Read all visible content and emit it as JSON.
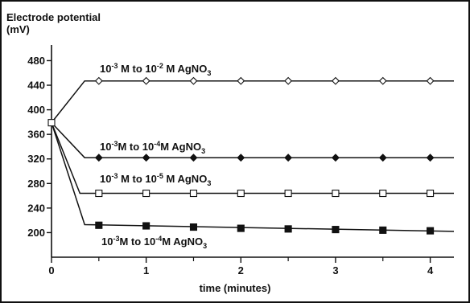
{
  "chart_data": {
    "type": "line",
    "ylabel": "Electrode potential",
    "ylabel_unit": "(mV)",
    "xlabel": "time (minutes)",
    "xlim": [
      0,
      4.25
    ],
    "ylim": [
      160,
      495
    ],
    "x_ticks": [
      0,
      1,
      2,
      3,
      4
    ],
    "x_minor_ticks": [
      0.5,
      1.5,
      2.5,
      3.5
    ],
    "y_ticks": [
      200,
      240,
      280,
      320,
      360,
      400,
      440,
      480
    ],
    "y_tick_labels": [
      "200",
      "240",
      "280",
      "320",
      "360",
      "400",
      "440",
      "480"
    ],
    "x_tick_labels": [
      "0",
      "1",
      "2",
      "3",
      "4"
    ],
    "start_point": {
      "x": 0,
      "y": 379
    },
    "series": [
      {
        "label": {
          "pre": "10",
          "exp1": "-3",
          "mid": " M to 10",
          "exp2": "-2",
          "post": " M AgNO",
          "sub": "3"
        },
        "marker": "diamond-open",
        "line": [
          [
            0,
            379
          ],
          [
            0.35,
            447
          ],
          [
            4.25,
            447
          ]
        ],
        "points": [
          [
            0.5,
            447
          ],
          [
            1,
            447
          ],
          [
            1.5,
            447
          ],
          [
            2,
            447
          ],
          [
            2.5,
            447
          ],
          [
            3,
            447
          ],
          [
            3.5,
            447
          ],
          [
            4,
            447
          ]
        ]
      },
      {
        "label": {
          "pre": "10",
          "exp1": "-3",
          "mid": "M to 10",
          "exp2": "-4",
          "post": "M AgNO",
          "sub": "3"
        },
        "marker": "diamond-filled",
        "line": [
          [
            0,
            379
          ],
          [
            0.35,
            322
          ],
          [
            4.25,
            322
          ]
        ],
        "points": [
          [
            0.5,
            322
          ],
          [
            1,
            322
          ],
          [
            1.5,
            322
          ],
          [
            2,
            322
          ],
          [
            2.5,
            322
          ],
          [
            3,
            322
          ],
          [
            3.5,
            322
          ],
          [
            4,
            322
          ]
        ]
      },
      {
        "label": {
          "pre": "10",
          "exp1": "-3",
          "mid": " M to 10",
          "exp2": "-5",
          "post": " M AgNO",
          "sub": "3"
        },
        "marker": "square-open",
        "line": [
          [
            0,
            379
          ],
          [
            0.3,
            264
          ],
          [
            4.25,
            264
          ]
        ],
        "points": [
          [
            0.5,
            264
          ],
          [
            1,
            264
          ],
          [
            1.5,
            264
          ],
          [
            2,
            264
          ],
          [
            2.5,
            264
          ],
          [
            3,
            264
          ],
          [
            3.5,
            264
          ],
          [
            4,
            264
          ]
        ]
      },
      {
        "label": {
          "pre": "10",
          "exp1": "-3",
          "mid": "M to 10",
          "exp2": "-4",
          "post": "M AgNO",
          "sub": "3"
        },
        "marker": "square-filled",
        "line": [
          [
            0,
            379
          ],
          [
            0.35,
            213
          ],
          [
            4.25,
            202
          ]
        ],
        "points": [
          [
            0.5,
            212
          ],
          [
            1,
            211
          ],
          [
            1.5,
            209
          ],
          [
            2,
            207
          ],
          [
            2.5,
            206
          ],
          [
            3,
            205
          ],
          [
            3.5,
            204
          ],
          [
            4,
            203
          ]
        ]
      }
    ]
  }
}
